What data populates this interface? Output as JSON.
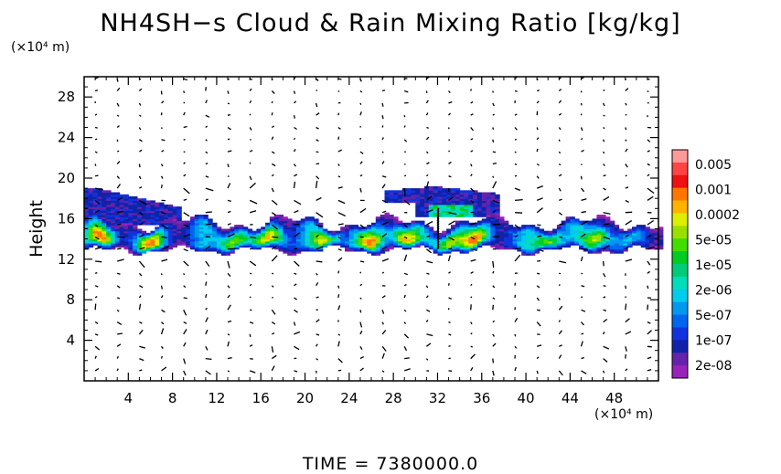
{
  "page": {
    "title": "NH4SH−s Cloud & Rain Mixing Ratio [kg/kg]",
    "y_unit": "(×10⁴ m)",
    "x_unit": "(×10⁴ m)",
    "time_label": "TIME  =  7380000.0"
  },
  "chart_data": {
    "type": "heatmap",
    "title": "NH4SH−s Cloud & Rain Mixing Ratio [kg/kg]",
    "xlabel": "",
    "ylabel": "Height",
    "x_unit": "(×10⁴ m)",
    "y_unit": "(×10⁴ m)",
    "xlim": [
      0,
      52
    ],
    "ylim": [
      0,
      30
    ],
    "x_ticks": [
      4,
      8,
      12,
      16,
      20,
      24,
      28,
      32,
      36,
      40,
      44,
      48
    ],
    "y_ticks": [
      4,
      8,
      12,
      16,
      20,
      24,
      28
    ],
    "grid": false,
    "overlay": "wind vectors (arrows)",
    "colorbar": {
      "scale": "log",
      "labels": [
        "0.005",
        "0.001",
        "0.0002",
        "5e-05",
        "1e-05",
        "2e-06",
        "5e-07",
        "1e-07",
        "2e-08"
      ],
      "colors": [
        "#ff9999",
        "#ff4444",
        "#ee1111",
        "#ff7700",
        "#ffb300",
        "#ddee00",
        "#99e000",
        "#44dd00",
        "#00cc22",
        "#00cc77",
        "#00ddbb",
        "#00ccee",
        "#0099ee",
        "#0066ee",
        "#1133dd",
        "#1122aa",
        "#6622aa",
        "#9922bb"
      ]
    },
    "layers": [
      {
        "name": "main cloud layer",
        "x_range": [
          0,
          52
        ],
        "y_range": [
          12.8,
          16.5
        ],
        "peak_value": "0.0002"
      },
      {
        "name": "upper left cloud",
        "x_range": [
          0,
          9
        ],
        "y_range": [
          15.5,
          19
        ],
        "peak_value": "1e-07"
      },
      {
        "name": "upper middle cloud",
        "x_range": [
          27,
          37
        ],
        "y_range": [
          17.5,
          19.5
        ],
        "peak_value": "2e-07"
      }
    ],
    "hotspots_x": [
      1.5,
      6,
      13.5,
      17,
      22,
      26,
      29,
      33,
      35.5,
      42,
      46.5
    ]
  }
}
